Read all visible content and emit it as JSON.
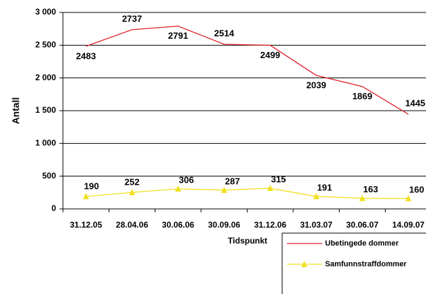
{
  "chart_data": {
    "type": "line",
    "categories": [
      "31.12.05",
      "28.04.06",
      "30.06.06",
      "30.09.06",
      "31.12.06",
      "31.03.07",
      "30.06.07",
      "14.09.07"
    ],
    "series": [
      {
        "name": "Ubetingede dommer",
        "color": "#e0202a",
        "values": [
          2483,
          2737,
          2791,
          2514,
          2499,
          2039,
          1869,
          1445
        ]
      },
      {
        "name": "Samfunnstraffdommer",
        "color": "#f0e020",
        "marker": "triangle",
        "values": [
          190,
          252,
          306,
          287,
          315,
          191,
          163,
          160
        ]
      }
    ],
    "ylabel": "Antall",
    "xlabel": "Tidspunkt",
    "ylim": [
      0,
      3000
    ],
    "yticks": [
      0,
      500,
      {
        "value": 1000,
        "label": "1 000"
      },
      {
        "value": 1500,
        "label": "1 500"
      },
      {
        "value": 2000,
        "label": "2 000"
      },
      {
        "value": 2500,
        "label": "2 500"
      },
      {
        "value": 3000,
        "label": "3 000"
      }
    ],
    "grid": true,
    "legend": "lower right"
  }
}
